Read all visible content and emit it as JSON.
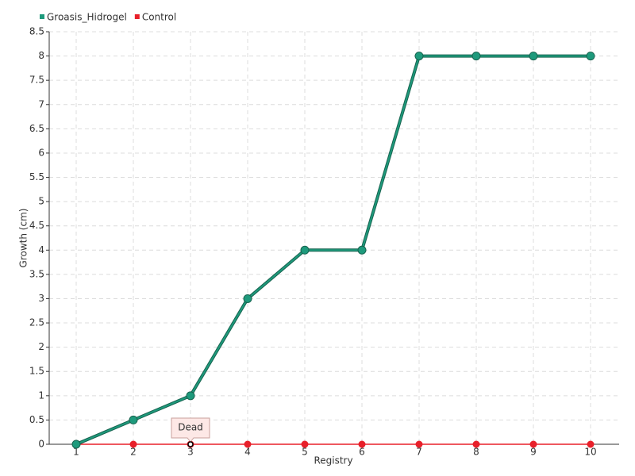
{
  "chart_data": {
    "type": "line",
    "categories": [
      "1",
      "2",
      "3",
      "4",
      "5",
      "6",
      "7",
      "8",
      "9",
      "10"
    ],
    "series": [
      {
        "name": "Groasis_Hidrogel",
        "color": "#1e9a7c",
        "values": [
          0,
          0.5,
          1,
          3,
          4,
          4,
          8,
          8,
          8,
          8
        ]
      },
      {
        "name": "Control",
        "color": "#e8202a",
        "values": [
          0,
          0,
          0,
          0,
          0,
          0,
          0,
          0,
          0,
          0
        ]
      }
    ],
    "ylim": [
      0,
      8.5
    ],
    "yticks": [
      0,
      0.5,
      1,
      1.5,
      2,
      2.5,
      3,
      3.5,
      4,
      4.5,
      5,
      5.5,
      6,
      6.5,
      7,
      7.5,
      8,
      8.5
    ],
    "ylabel": "Growth (cm)",
    "xlabel": "Registry",
    "grid": true,
    "legend": "top-left",
    "annotations": [
      {
        "text": "Dead",
        "x": "3"
      }
    ]
  }
}
